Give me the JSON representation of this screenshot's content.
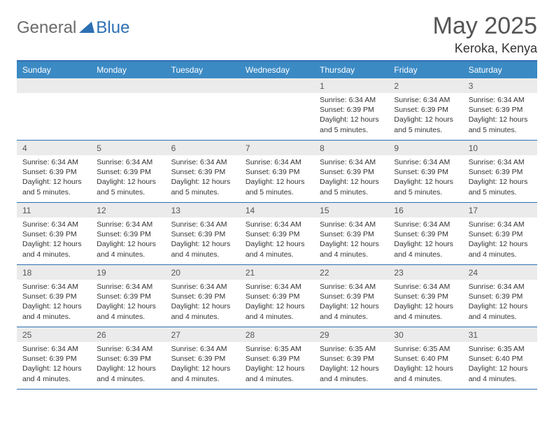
{
  "logo": {
    "general": "General",
    "blue": "Blue"
  },
  "title": "May 2025",
  "location": "Keroka, Kenya",
  "colors": {
    "header_bar": "#3b8ac4",
    "border": "#2d6fb3",
    "daynum_bg": "#ebebeb",
    "text": "#333333",
    "title_text": "#555555",
    "logo_gray": "#6b6b6b",
    "logo_blue": "#2d6fb3",
    "background": "#ffffff"
  },
  "dows": [
    "Sunday",
    "Monday",
    "Tuesday",
    "Wednesday",
    "Thursday",
    "Friday",
    "Saturday"
  ],
  "weeks": [
    [
      null,
      null,
      null,
      null,
      {
        "n": "1",
        "sr": "6:34 AM",
        "ss": "6:39 PM",
        "dl": "12 hours and 5 minutes."
      },
      {
        "n": "2",
        "sr": "6:34 AM",
        "ss": "6:39 PM",
        "dl": "12 hours and 5 minutes."
      },
      {
        "n": "3",
        "sr": "6:34 AM",
        "ss": "6:39 PM",
        "dl": "12 hours and 5 minutes."
      }
    ],
    [
      {
        "n": "4",
        "sr": "6:34 AM",
        "ss": "6:39 PM",
        "dl": "12 hours and 5 minutes."
      },
      {
        "n": "5",
        "sr": "6:34 AM",
        "ss": "6:39 PM",
        "dl": "12 hours and 5 minutes."
      },
      {
        "n": "6",
        "sr": "6:34 AM",
        "ss": "6:39 PM",
        "dl": "12 hours and 5 minutes."
      },
      {
        "n": "7",
        "sr": "6:34 AM",
        "ss": "6:39 PM",
        "dl": "12 hours and 5 minutes."
      },
      {
        "n": "8",
        "sr": "6:34 AM",
        "ss": "6:39 PM",
        "dl": "12 hours and 5 minutes."
      },
      {
        "n": "9",
        "sr": "6:34 AM",
        "ss": "6:39 PM",
        "dl": "12 hours and 5 minutes."
      },
      {
        "n": "10",
        "sr": "6:34 AM",
        "ss": "6:39 PM",
        "dl": "12 hours and 5 minutes."
      }
    ],
    [
      {
        "n": "11",
        "sr": "6:34 AM",
        "ss": "6:39 PM",
        "dl": "12 hours and 4 minutes."
      },
      {
        "n": "12",
        "sr": "6:34 AM",
        "ss": "6:39 PM",
        "dl": "12 hours and 4 minutes."
      },
      {
        "n": "13",
        "sr": "6:34 AM",
        "ss": "6:39 PM",
        "dl": "12 hours and 4 minutes."
      },
      {
        "n": "14",
        "sr": "6:34 AM",
        "ss": "6:39 PM",
        "dl": "12 hours and 4 minutes."
      },
      {
        "n": "15",
        "sr": "6:34 AM",
        "ss": "6:39 PM",
        "dl": "12 hours and 4 minutes."
      },
      {
        "n": "16",
        "sr": "6:34 AM",
        "ss": "6:39 PM",
        "dl": "12 hours and 4 minutes."
      },
      {
        "n": "17",
        "sr": "6:34 AM",
        "ss": "6:39 PM",
        "dl": "12 hours and 4 minutes."
      }
    ],
    [
      {
        "n": "18",
        "sr": "6:34 AM",
        "ss": "6:39 PM",
        "dl": "12 hours and 4 minutes."
      },
      {
        "n": "19",
        "sr": "6:34 AM",
        "ss": "6:39 PM",
        "dl": "12 hours and 4 minutes."
      },
      {
        "n": "20",
        "sr": "6:34 AM",
        "ss": "6:39 PM",
        "dl": "12 hours and 4 minutes."
      },
      {
        "n": "21",
        "sr": "6:34 AM",
        "ss": "6:39 PM",
        "dl": "12 hours and 4 minutes."
      },
      {
        "n": "22",
        "sr": "6:34 AM",
        "ss": "6:39 PM",
        "dl": "12 hours and 4 minutes."
      },
      {
        "n": "23",
        "sr": "6:34 AM",
        "ss": "6:39 PM",
        "dl": "12 hours and 4 minutes."
      },
      {
        "n": "24",
        "sr": "6:34 AM",
        "ss": "6:39 PM",
        "dl": "12 hours and 4 minutes."
      }
    ],
    [
      {
        "n": "25",
        "sr": "6:34 AM",
        "ss": "6:39 PM",
        "dl": "12 hours and 4 minutes."
      },
      {
        "n": "26",
        "sr": "6:34 AM",
        "ss": "6:39 PM",
        "dl": "12 hours and 4 minutes."
      },
      {
        "n": "27",
        "sr": "6:34 AM",
        "ss": "6:39 PM",
        "dl": "12 hours and 4 minutes."
      },
      {
        "n": "28",
        "sr": "6:35 AM",
        "ss": "6:39 PM",
        "dl": "12 hours and 4 minutes."
      },
      {
        "n": "29",
        "sr": "6:35 AM",
        "ss": "6:39 PM",
        "dl": "12 hours and 4 minutes."
      },
      {
        "n": "30",
        "sr": "6:35 AM",
        "ss": "6:40 PM",
        "dl": "12 hours and 4 minutes."
      },
      {
        "n": "31",
        "sr": "6:35 AM",
        "ss": "6:40 PM",
        "dl": "12 hours and 4 minutes."
      }
    ]
  ],
  "labels": {
    "sunrise": "Sunrise:",
    "sunset": "Sunset:",
    "daylight": "Daylight:"
  }
}
